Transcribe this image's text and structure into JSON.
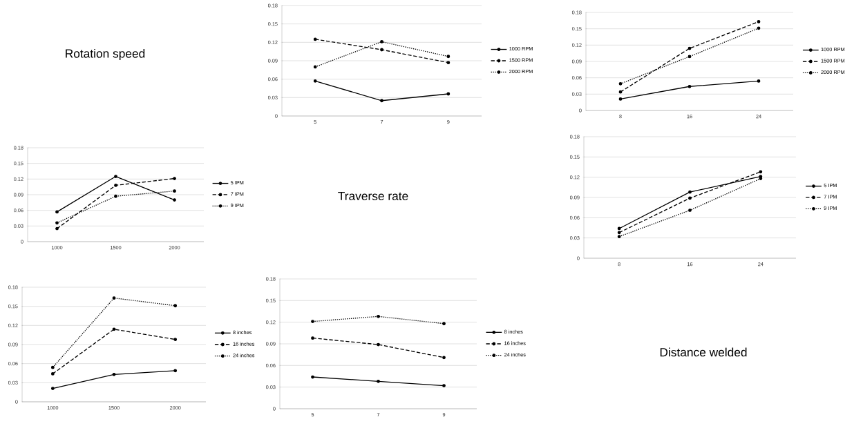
{
  "chart_data": [
    {
      "type": "other",
      "title": "Rotation speed"
    },
    {
      "type": "line",
      "categories": [
        "5",
        "7",
        "9"
      ],
      "ylim": [
        0,
        0.18
      ],
      "yticks": [
        0,
        0.03,
        0.06,
        0.09,
        0.12,
        0.15,
        0.18
      ],
      "grid": "y",
      "legend": "right",
      "marker": "circle",
      "series": [
        {
          "name": "1000 RPM",
          "color": "#000000",
          "line_style": "solid",
          "values": [
            0.057,
            0.025,
            0.036
          ]
        },
        {
          "name": "1500 RPM",
          "color": "#000000",
          "line_style": "dashed",
          "values": [
            0.125,
            0.108,
            0.087
          ]
        },
        {
          "name": "2000 RPM",
          "color": "#000000",
          "line_style": "dotted",
          "values": [
            0.08,
            0.121,
            0.097
          ]
        }
      ]
    },
    {
      "type": "line",
      "categories": [
        "8",
        "16",
        "24"
      ],
      "ylim": [
        0,
        0.18
      ],
      "yticks": [
        0,
        0.03,
        0.06,
        0.09,
        0.12,
        0.15,
        0.18
      ],
      "grid": "y",
      "legend": "right",
      "marker": "circle",
      "series": [
        {
          "name": "1000 RPM",
          "color": "#000000",
          "line_style": "solid",
          "values": [
            0.021,
            0.044,
            0.054
          ]
        },
        {
          "name": "1500 RPM",
          "color": "#000000",
          "line_style": "dashed",
          "values": [
            0.034,
            0.114,
            0.163
          ]
        },
        {
          "name": "2000 RPM",
          "color": "#000000",
          "line_style": "dotted",
          "values": [
            0.049,
            0.099,
            0.151
          ]
        }
      ]
    },
    {
      "type": "line",
      "categories": [
        "1000",
        "1500",
        "2000"
      ],
      "ylim": [
        0,
        0.18
      ],
      "yticks": [
        0,
        0.03,
        0.06,
        0.09,
        0.12,
        0.15,
        0.18
      ],
      "grid": "y",
      "legend": "right",
      "marker": "circle",
      "series": [
        {
          "name": "5 IPM",
          "color": "#000000",
          "line_style": "solid",
          "values": [
            0.057,
            0.125,
            0.08
          ]
        },
        {
          "name": "7 IPM",
          "color": "#000000",
          "line_style": "dashed",
          "values": [
            0.025,
            0.108,
            0.121
          ]
        },
        {
          "name": "9 IPM",
          "color": "#000000",
          "line_style": "dotted",
          "values": [
            0.036,
            0.087,
            0.097
          ]
        }
      ]
    },
    {
      "type": "other",
      "title": "Traverse rate"
    },
    {
      "type": "line",
      "categories": [
        "8",
        "16",
        "24"
      ],
      "ylim": [
        0,
        0.18
      ],
      "yticks": [
        0,
        0.03,
        0.06,
        0.09,
        0.12,
        0.15,
        0.18
      ],
      "grid": "y",
      "legend": "right",
      "marker": "circle",
      "series": [
        {
          "name": "5 IPM",
          "color": "#000000",
          "line_style": "solid",
          "values": [
            0.044,
            0.098,
            0.121
          ]
        },
        {
          "name": "7 IPM",
          "color": "#000000",
          "line_style": "dashed",
          "values": [
            0.038,
            0.089,
            0.128
          ]
        },
        {
          "name": "9 IPM",
          "color": "#000000",
          "line_style": "dotted",
          "values": [
            0.032,
            0.071,
            0.118
          ]
        }
      ]
    },
    {
      "type": "line",
      "categories": [
        "1000",
        "1500",
        "2000"
      ],
      "ylim": [
        0,
        0.18
      ],
      "yticks": [
        0,
        0.03,
        0.06,
        0.09,
        0.12,
        0.15,
        0.18
      ],
      "grid": "y",
      "legend": "right",
      "marker": "circle",
      "series": [
        {
          "name": "8 inches",
          "color": "#000000",
          "line_style": "solid",
          "values": [
            0.021,
            0.043,
            0.049
          ]
        },
        {
          "name": "16 inches",
          "color": "#000000",
          "line_style": "dashed",
          "values": [
            0.044,
            0.114,
            0.098
          ]
        },
        {
          "name": "24 inches",
          "color": "#000000",
          "line_style": "dotted",
          "values": [
            0.054,
            0.163,
            0.151
          ]
        }
      ]
    },
    {
      "type": "line",
      "categories": [
        "5",
        "7",
        "9"
      ],
      "ylim": [
        0,
        0.18
      ],
      "yticks": [
        0,
        0.03,
        0.06,
        0.09,
        0.12,
        0.15,
        0.18
      ],
      "grid": "y",
      "legend": "right",
      "marker": "circle",
      "series": [
        {
          "name": "8 inches",
          "color": "#000000",
          "line_style": "solid",
          "values": [
            0.044,
            0.038,
            0.032
          ]
        },
        {
          "name": "16 inches",
          "color": "#000000",
          "line_style": "dashed",
          "values": [
            0.098,
            0.089,
            0.071
          ]
        },
        {
          "name": "24 inches",
          "color": "#000000",
          "line_style": "dotted",
          "values": [
            0.121,
            0.128,
            0.118
          ]
        }
      ]
    },
    {
      "type": "other",
      "title": "Distance welded"
    }
  ]
}
